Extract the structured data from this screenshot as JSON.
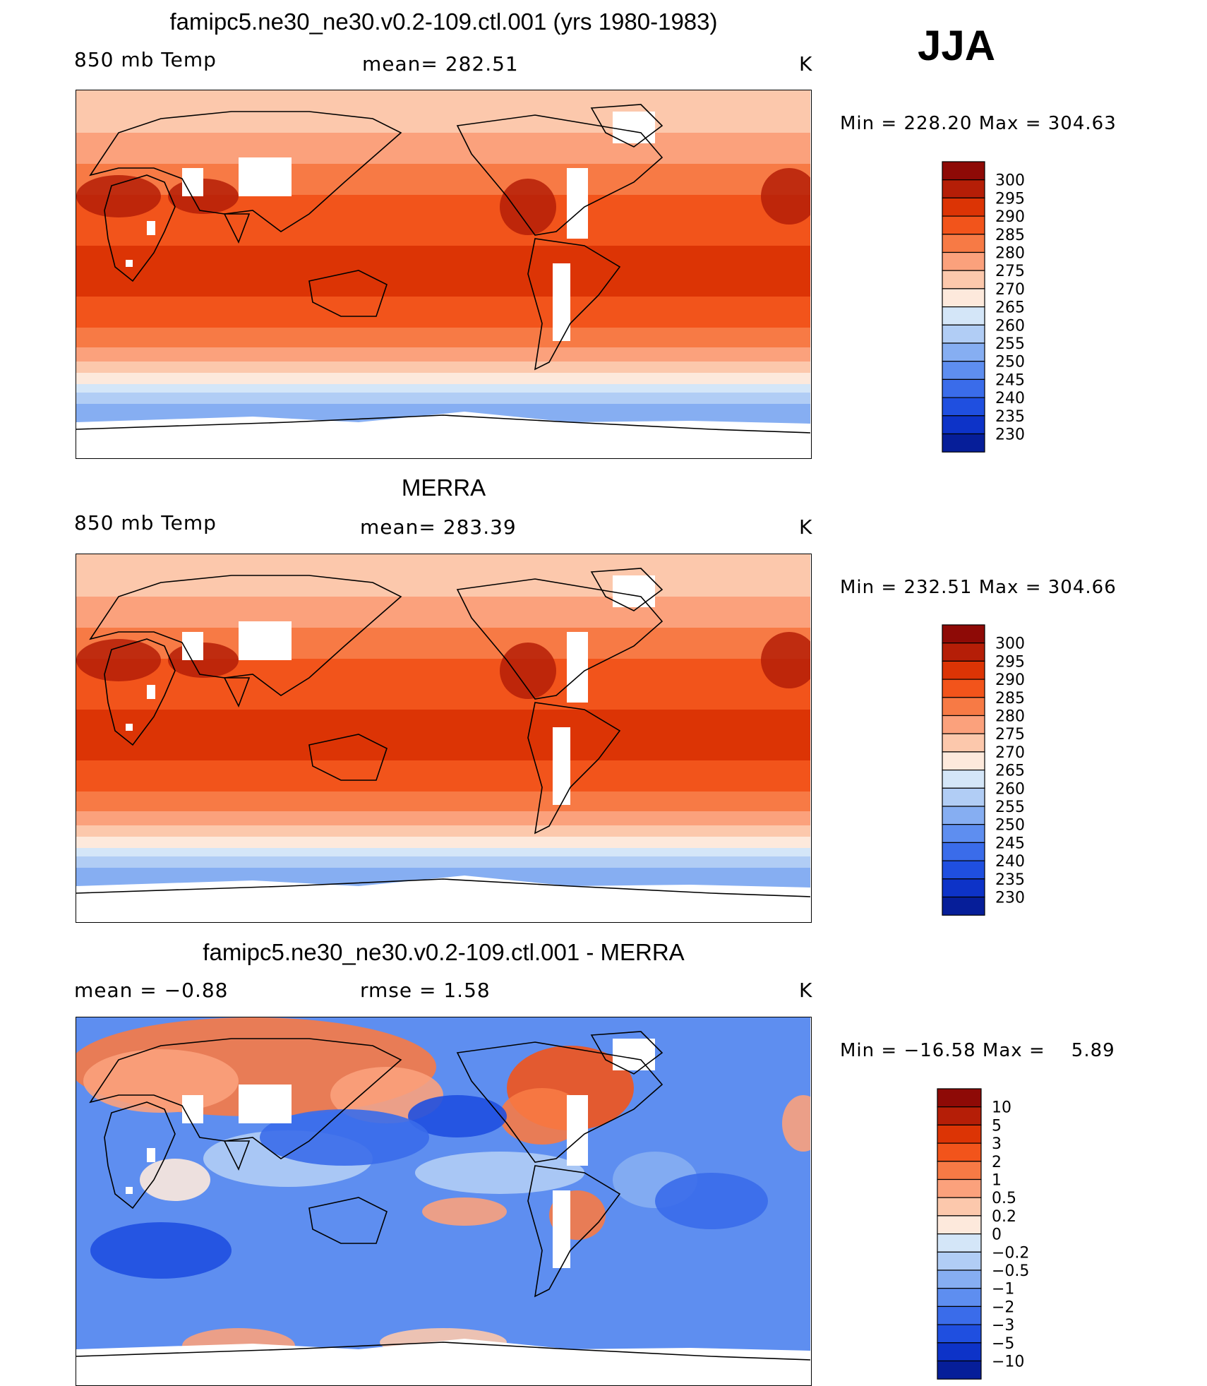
{
  "season": "JJA",
  "panels": [
    {
      "title": "famipc5.ne30_ne30.v0.2-109.ctl.001 (yrs 1980-1983)",
      "left_label": "850 mb Temp",
      "center_label": "mean= 282.51",
      "units": "K",
      "minmax": "Min = 228.20 Max = 304.63",
      "palette": "temp",
      "levels": [
        "300",
        "295",
        "290",
        "285",
        "280",
        "275",
        "270",
        "265",
        "260",
        "255",
        "250",
        "245",
        "240",
        "235",
        "230"
      ]
    },
    {
      "title": "MERRA",
      "left_label": "850 mb Temp",
      "center_label": "mean= 283.39",
      "units": "K",
      "minmax": "Min = 232.51 Max = 304.66",
      "palette": "temp",
      "levels": [
        "300",
        "295",
        "290",
        "285",
        "280",
        "275",
        "270",
        "265",
        "260",
        "255",
        "250",
        "245",
        "240",
        "235",
        "230"
      ]
    },
    {
      "title": "famipc5.ne30_ne30.v0.2-109.ctl.001 - MERRA",
      "left_label": "mean =   −0.88",
      "center_label": "rmse =    1.58",
      "units": "K",
      "minmax": "Min = −16.58 Max =    5.89",
      "palette": "diff",
      "levels": [
        "10",
        "5",
        "3",
        "2",
        "1",
        "0.5",
        "0.2",
        "0",
        "−0.2",
        "−0.5",
        "−1",
        "−2",
        "−3",
        "−5",
        "−10"
      ]
    }
  ],
  "colors": {
    "temp": [
      "#8e0a06",
      "#b51e07",
      "#dc3405",
      "#f2541b",
      "#f77a45",
      "#fba17c",
      "#fcc8ac",
      "#fde9dc",
      "#d4e6f8",
      "#b1cdf5",
      "#86aef2",
      "#5e8ef0",
      "#3a6cea",
      "#1f4fe0",
      "#0d33c8",
      "#061e99"
    ],
    "diff": [
      "#8e0a06",
      "#b51e07",
      "#dc3405",
      "#f2541b",
      "#f77a45",
      "#fba17c",
      "#fcc8ac",
      "#fde9dc",
      "#d4e6f8",
      "#b1cdf5",
      "#86aef2",
      "#5e8ef0",
      "#3a6cea",
      "#1f4fe0",
      "#0d33c8",
      "#061e99"
    ]
  }
}
